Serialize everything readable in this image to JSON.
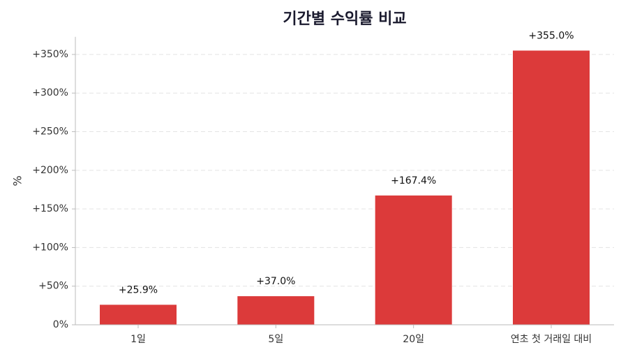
{
  "chart_data": {
    "type": "bar",
    "title": "기간별 수익률 비교",
    "y_label": "%",
    "categories": [
      "1일",
      "5일",
      "20일",
      "연초 첫 거래일 대비"
    ],
    "values": [
      25.9,
      37.0,
      167.4,
      355.0
    ],
    "value_labels": [
      "+25.9%",
      "+37.0%",
      "+167.4%",
      "+355.0%"
    ],
    "color": "#dc3a3a",
    "ylim": [
      0,
      372.75
    ],
    "yticks": [
      {
        "value": 0,
        "label": "0%"
      },
      {
        "value": 50,
        "label": "+50%"
      },
      {
        "value": 100,
        "label": "+100%"
      },
      {
        "value": 150,
        "label": "+150%"
      },
      {
        "value": 200,
        "label": "+200%"
      },
      {
        "value": 250,
        "label": "+250%"
      },
      {
        "value": 300,
        "label": "+300%"
      },
      {
        "value": 350,
        "label": "+350%"
      }
    ],
    "grid": true
  }
}
